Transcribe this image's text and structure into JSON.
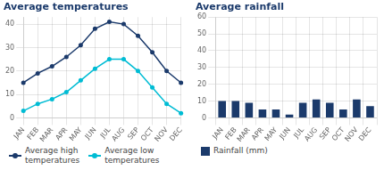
{
  "chart_data": [
    {
      "type": "line",
      "title": "Average temperatures",
      "categories": [
        "JAN",
        "FEB",
        "MAR",
        "APR",
        "MAY",
        "JUN",
        "JUL",
        "AUG",
        "SEP",
        "OCT",
        "NOV",
        "DEC"
      ],
      "series": [
        {
          "name": "Average high\ntemperatures",
          "color": "#1b3a6b",
          "marker": "circle",
          "values": [
            15,
            19,
            22,
            26,
            31,
            38,
            41,
            40,
            35,
            28,
            20,
            15
          ]
        },
        {
          "name": "Average low\ntemperatures",
          "color": "#00bcd4",
          "marker": "circle",
          "values": [
            3,
            6,
            8,
            11,
            16,
            21,
            25,
            25,
            20,
            13,
            6,
            2
          ]
        }
      ],
      "ylim": [
        0,
        43
      ],
      "yticks": [
        0,
        10,
        20,
        30,
        40
      ],
      "grid": true,
      "legend": "bottom"
    },
    {
      "type": "bar",
      "title": "Average rainfall",
      "categories": [
        "JAN",
        "FEB",
        "MAR",
        "APR",
        "MAY",
        "JUN",
        "JUL",
        "AUG",
        "SEP",
        "OCT",
        "NOV",
        "DEC"
      ],
      "series": [
        {
          "name": "Rainfall (mm)",
          "color": "#1b3a6b",
          "values": [
            10,
            10,
            9,
            5,
            5,
            2,
            9,
            11,
            9,
            5,
            11,
            7
          ]
        }
      ],
      "ylim": [
        0,
        60
      ],
      "yticks": [
        0,
        10,
        20,
        30,
        40,
        50,
        60
      ],
      "grid": true,
      "legend": "bottom"
    }
  ]
}
